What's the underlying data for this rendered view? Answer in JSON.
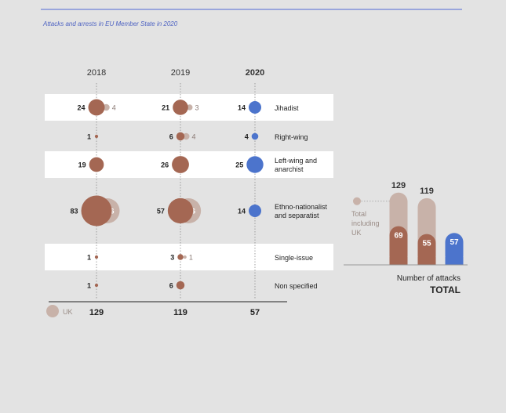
{
  "title": "Attacks and arrests in EU Member State in 2020",
  "colors": {
    "eu": "#a46753",
    "uk": "#c8b2a9",
    "y2020": "#4c74cc",
    "band": "#ffffff",
    "background": "#e3e3e3"
  },
  "chart_data": [
    {
      "type": "bubble-matrix",
      "title": "",
      "years": [
        "2018",
        "2019",
        "2020"
      ],
      "categories": [
        "Jihadist",
        "Right-wing",
        "Left-wing and anarchist",
        "Ethno-nationalist and separatist",
        "Single-issue",
        "Non specified"
      ],
      "series": [
        {
          "name": "",
          "year": "2018",
          "values": [
            24,
            1,
            19,
            83,
            1,
            1
          ]
        },
        {
          "name": "UK",
          "year": "2018",
          "values": [
            4,
            null,
            null,
            56,
            null,
            null
          ]
        },
        {
          "name": "",
          "year": "2019",
          "values": [
            21,
            6,
            26,
            57,
            3,
            6
          ]
        },
        {
          "name": "UK",
          "year": "2019",
          "values": [
            3,
            4,
            null,
            56,
            1,
            null
          ]
        },
        {
          "name": "",
          "year": "2020",
          "values": [
            14,
            4,
            25,
            14,
            null,
            null
          ]
        }
      ],
      "totals": [
        "129",
        "119",
        "57"
      ],
      "legend": {
        "uk_label": "UK",
        "position": "bottom-left"
      }
    },
    {
      "type": "bar",
      "title": "",
      "categories": [
        "2018",
        "2019",
        "2020"
      ],
      "series": [
        {
          "name": "Total including UK",
          "values": [
            129,
            119,
            57
          ]
        },
        {
          "name": "",
          "values": [
            69,
            55,
            57
          ]
        }
      ],
      "total_label_text": "Total including UK",
      "xlabel": "Number of attacks",
      "caption": "TOTAL"
    }
  ]
}
